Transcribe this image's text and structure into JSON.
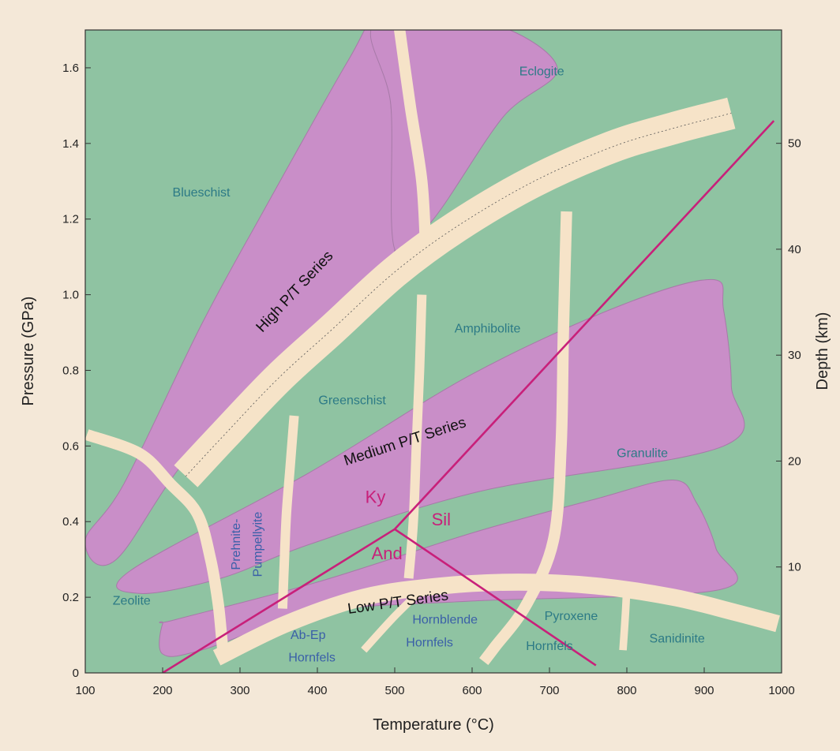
{
  "chart_data": {
    "type": "area",
    "xlabel": "Temperature (°C)",
    "ylabel": "Pressure (GPa)",
    "y2label": "Depth (km)",
    "xlim": [
      100,
      1000
    ],
    "ylim": [
      0,
      1.7
    ],
    "y2lim": [
      0,
      60.7
    ],
    "x_ticks": [
      "100",
      "200",
      "300",
      "400",
      "500",
      "600",
      "700",
      "800",
      "900",
      "1000"
    ],
    "y_ticks": [
      "0",
      "0.2",
      "0.4",
      "0.6",
      "0.8",
      "1.0",
      "1.2",
      "1.4",
      "1.6"
    ],
    "y2_ticks": [
      "10",
      "20",
      "30",
      "40",
      "50"
    ],
    "colors": {
      "background": "#8fc3a2",
      "facies_region": "#c98ec8",
      "series_band": "#f6e3c8",
      "aluminosilicate_line": "#c8207a",
      "facies_label": "#2c7a86",
      "hornfels_label": "#3a5fa8"
    },
    "facies_labels": [
      {
        "text": "Blueschist",
        "x": 250,
        "y": 1.26
      },
      {
        "text": "Eclogite",
        "x": 690,
        "y": 1.58
      },
      {
        "text": "Amphibolite",
        "x": 620,
        "y": 0.9
      },
      {
        "text": "Greenschist",
        "x": 445,
        "y": 0.71
      },
      {
        "text": "Granulite",
        "x": 820,
        "y": 0.57
      },
      {
        "text": "Zeolite",
        "x": 160,
        "y": 0.18
      },
      {
        "text": "Sanidinite",
        "x": 865,
        "y": 0.08
      },
      {
        "text": "Pyroxene",
        "x": 728,
        "y": 0.14
      },
      {
        "text": "Hornfels",
        "x": 700,
        "y": 0.06
      }
    ],
    "hornfels_labels": [
      {
        "text": "Hornblende",
        "x": 565,
        "y": 0.13
      },
      {
        "text": "Hornfels",
        "x": 545,
        "y": 0.07
      },
      {
        "text": "Ab-Ep",
        "x": 388,
        "y": 0.09
      },
      {
        "text": "Hornfels",
        "x": 393,
        "y": 0.03
      }
    ],
    "rotated_labels": [
      {
        "text": "Prehnite-",
        "x": 300,
        "y": 0.34,
        "angle": -90
      },
      {
        "text": "Pumpellyite",
        "x": 328,
        "y": 0.34,
        "angle": -90
      }
    ],
    "series_labels": [
      {
        "text": "High P/T Series",
        "x": 375,
        "y": 1.0,
        "angle": -47
      },
      {
        "text": "Medium P/T Series",
        "x": 515,
        "y": 0.6,
        "angle": -18
      },
      {
        "text": "Low P/T Series",
        "x": 505,
        "y": 0.175,
        "angle": -8
      }
    ],
    "aluminosilicate": {
      "labels": [
        {
          "text": "Ky",
          "x": 475,
          "y": 0.45
        },
        {
          "text": "Sil",
          "x": 560,
          "y": 0.39
        },
        {
          "text": "And",
          "x": 490,
          "y": 0.3
        }
      ],
      "triple_point": [
        500,
        0.38
      ],
      "boundaries": [
        {
          "name": "And-Ky",
          "points": [
            [
              200,
              0
            ],
            [
              500,
              0.38
            ]
          ]
        },
        {
          "name": "Ky-Sil",
          "points": [
            [
              500,
              0.38
            ],
            [
              990,
              1.46
            ]
          ]
        },
        {
          "name": "And-Sil",
          "points": [
            [
              500,
              0.38
            ],
            [
              760,
              0.02
            ]
          ]
        }
      ]
    },
    "regions": [
      {
        "name": "Blueschist",
        "points": [
          [
            100,
            0.35
          ],
          [
            140,
            0.3
          ],
          [
            255,
            0.62
          ],
          [
            470,
            0.95
          ],
          [
            500,
            1.12
          ],
          [
            495,
            1.5
          ],
          [
            475,
            1.72
          ],
          [
            440,
            1.62
          ],
          [
            330,
            1.22
          ],
          [
            250,
            0.92
          ],
          [
            150,
            0.5
          ]
        ]
      },
      {
        "name": "Eclogite",
        "points": [
          [
            475,
            1.72
          ],
          [
            495,
            1.5
          ],
          [
            500,
            1.12
          ],
          [
            550,
            1.2
          ],
          [
            640,
            1.47
          ],
          [
            710,
            1.6
          ],
          [
            620,
            1.72
          ]
        ]
      },
      {
        "name": "Amphibolite",
        "points": [
          [
            158,
            0.27
          ],
          [
            390,
            0.53
          ],
          [
            600,
            0.79
          ],
          [
            790,
            0.97
          ],
          [
            910,
            1.04
          ],
          [
            925,
            0.96
          ],
          [
            935,
            0.76
          ],
          [
            925,
            0.6
          ],
          [
            610,
            0.48
          ],
          [
            390,
            0.34
          ],
          [
            275,
            0.25
          ],
          [
            170,
            0.21
          ]
        ]
      },
      {
        "name": "Granulite",
        "points": [
          [
            200,
            0.13
          ],
          [
            215,
            0.14
          ],
          [
            400,
            0.24
          ],
          [
            600,
            0.37
          ],
          [
            760,
            0.46
          ],
          [
            860,
            0.51
          ],
          [
            890,
            0.45
          ],
          [
            915,
            0.33
          ],
          [
            920,
            0.22
          ],
          [
            600,
            0.19
          ],
          [
            400,
            0.16
          ],
          [
            250,
            0.06
          ],
          [
            200,
            0.05
          ]
        ]
      }
    ],
    "series_bands": [
      {
        "name": "High P/T Series",
        "width": 0.085,
        "points": [
          [
            230,
            0.52
          ],
          [
            280,
            0.63
          ],
          [
            350,
            0.78
          ],
          [
            420,
            0.91
          ],
          [
            500,
            1.06
          ],
          [
            580,
            1.18
          ],
          [
            680,
            1.3
          ],
          [
            780,
            1.39
          ],
          [
            860,
            1.44
          ],
          [
            935,
            1.48
          ]
        ]
      },
      {
        "name": "Low P/T Series",
        "width": 0.045,
        "points": [
          [
            270,
            0.04
          ],
          [
            360,
            0.13
          ],
          [
            460,
            0.2
          ],
          [
            560,
            0.23
          ],
          [
            660,
            0.24
          ],
          [
            760,
            0.23
          ],
          [
            860,
            0.2
          ],
          [
            940,
            0.16
          ],
          [
            995,
            0.13
          ]
        ]
      },
      {
        "name": "Zeolite boundary",
        "width": 0.03,
        "points": [
          [
            102,
            0.63
          ],
          [
            170,
            0.58
          ],
          [
            210,
            0.5
          ],
          [
            245,
            0.42
          ],
          [
            262,
            0.3
          ],
          [
            272,
            0.18
          ],
          [
            278,
            0.06
          ],
          [
            282,
            0.04
          ]
        ]
      },
      {
        "name": "Greenschist boundary",
        "width": 0.025,
        "points": [
          [
            370,
            0.68
          ],
          [
            365,
            0.55
          ],
          [
            360,
            0.42
          ],
          [
            357,
            0.28
          ],
          [
            355,
            0.17
          ]
        ]
      },
      {
        "name": "Amphibolite boundary",
        "width": 0.025,
        "points": [
          [
            535,
            1.0
          ],
          [
            532,
            0.8
          ],
          [
            528,
            0.6
          ],
          [
            524,
            0.4
          ],
          [
            518,
            0.25
          ]
        ]
      },
      {
        "name": "Blueschist-Eclogite boundary",
        "width": 0.03,
        "points": [
          [
            505,
            1.72
          ],
          [
            520,
            1.5
          ],
          [
            535,
            1.3
          ],
          [
            540,
            1.12
          ]
        ]
      },
      {
        "name": "Granulite boundary",
        "width": 0.03,
        "points": [
          [
            722,
            1.22
          ],
          [
            718,
            0.9
          ],
          [
            715,
            0.6
          ],
          [
            705,
            0.35
          ],
          [
            670,
            0.18
          ],
          [
            630,
            0.07
          ],
          [
            615,
            0.03
          ]
        ]
      },
      {
        "name": "Sanidinite boundary",
        "width": 0.02,
        "points": [
          [
            800,
            0.23
          ],
          [
            798,
            0.15
          ],
          [
            795,
            0.06
          ]
        ]
      },
      {
        "name": "Hornfels boundary",
        "width": 0.02,
        "points": [
          [
            540,
            0.23
          ],
          [
            500,
            0.15
          ],
          [
            460,
            0.06
          ]
        ]
      }
    ]
  }
}
